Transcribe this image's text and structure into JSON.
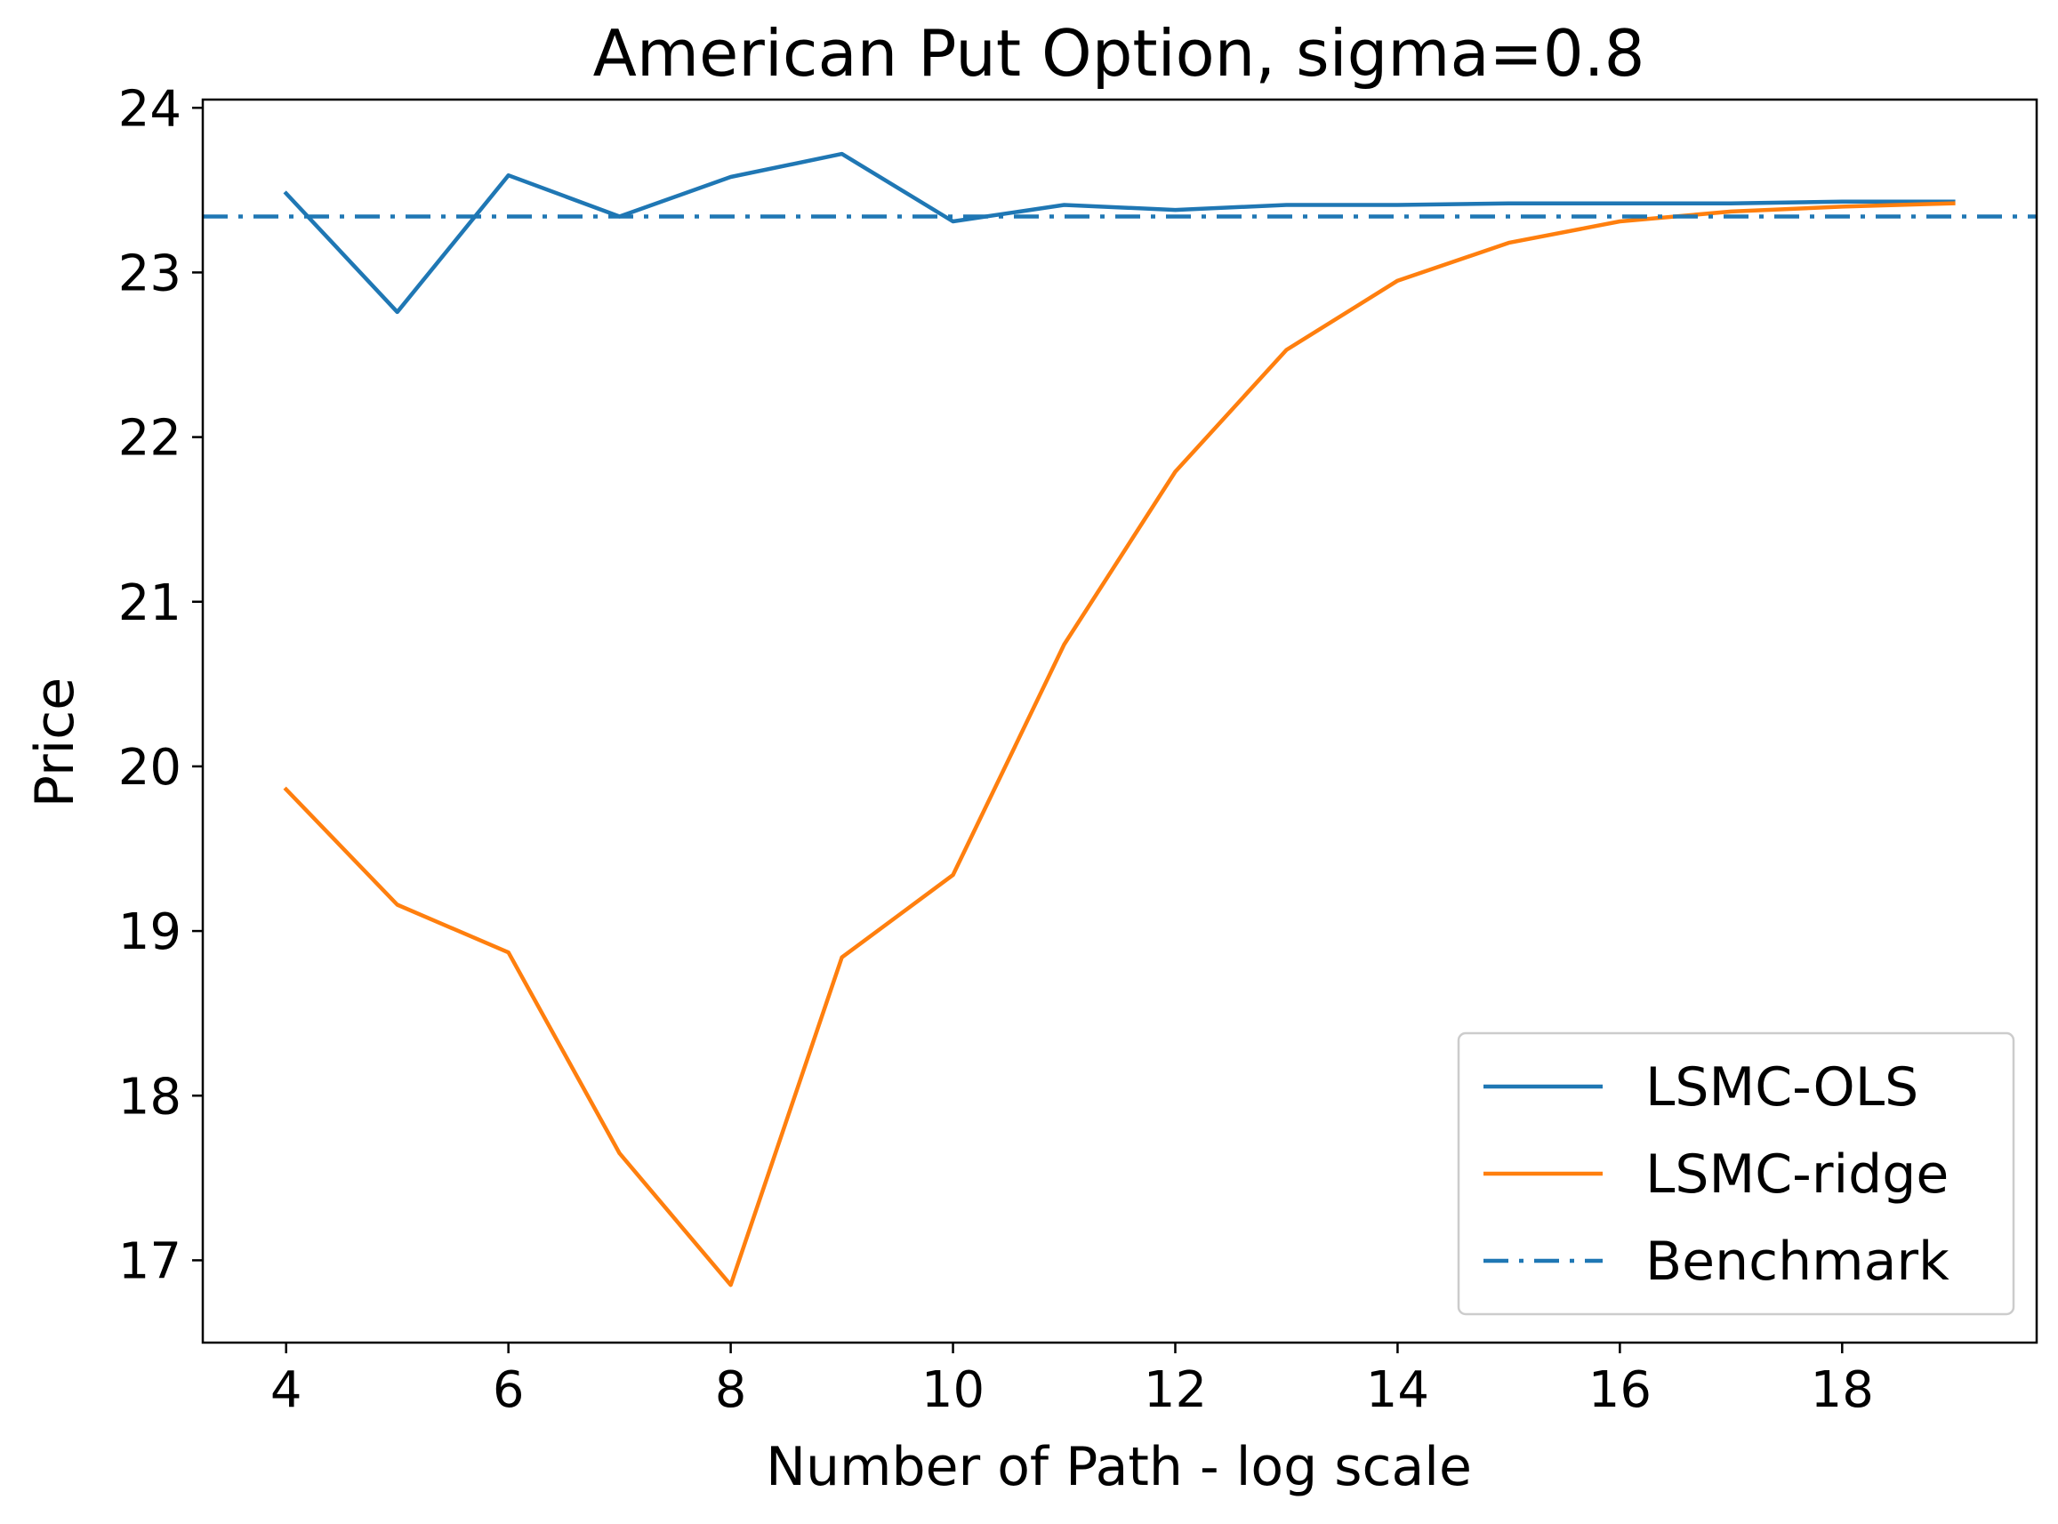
{
  "chart_data": {
    "type": "line",
    "title": "American Put Option, sigma=0.8",
    "xlabel": "Number of Path - log scale",
    "ylabel": "Price",
    "xlim": [
      3.25,
      19.75
    ],
    "ylim": [
      16.5,
      24.05
    ],
    "xticks": [
      4,
      6,
      8,
      10,
      12,
      14,
      16,
      18
    ],
    "yticks": [
      17,
      18,
      19,
      20,
      21,
      22,
      23,
      24
    ],
    "grid": false,
    "legend_position": "lower-right",
    "x": [
      4,
      5,
      6,
      7,
      8,
      9,
      10,
      11,
      12,
      13,
      14,
      15,
      16,
      17,
      18,
      19
    ],
    "series": [
      {
        "name": "LSMC-OLS",
        "color": "#1f77b4",
        "style": "solid",
        "values": [
          23.48,
          22.76,
          23.59,
          23.34,
          23.58,
          23.72,
          23.31,
          23.41,
          23.38,
          23.41,
          23.41,
          23.42,
          23.42,
          23.42,
          23.43,
          23.43
        ]
      },
      {
        "name": "LSMC-ridge",
        "color": "#ff7f0e",
        "style": "solid",
        "values": [
          19.86,
          19.16,
          18.87,
          17.65,
          16.85,
          18.84,
          19.34,
          20.74,
          21.79,
          22.53,
          22.95,
          23.18,
          23.31,
          23.37,
          23.4,
          23.42
        ]
      },
      {
        "name": "Benchmark",
        "color": "#1f77b4",
        "style": "dashdot",
        "hline": 23.34
      }
    ]
  }
}
